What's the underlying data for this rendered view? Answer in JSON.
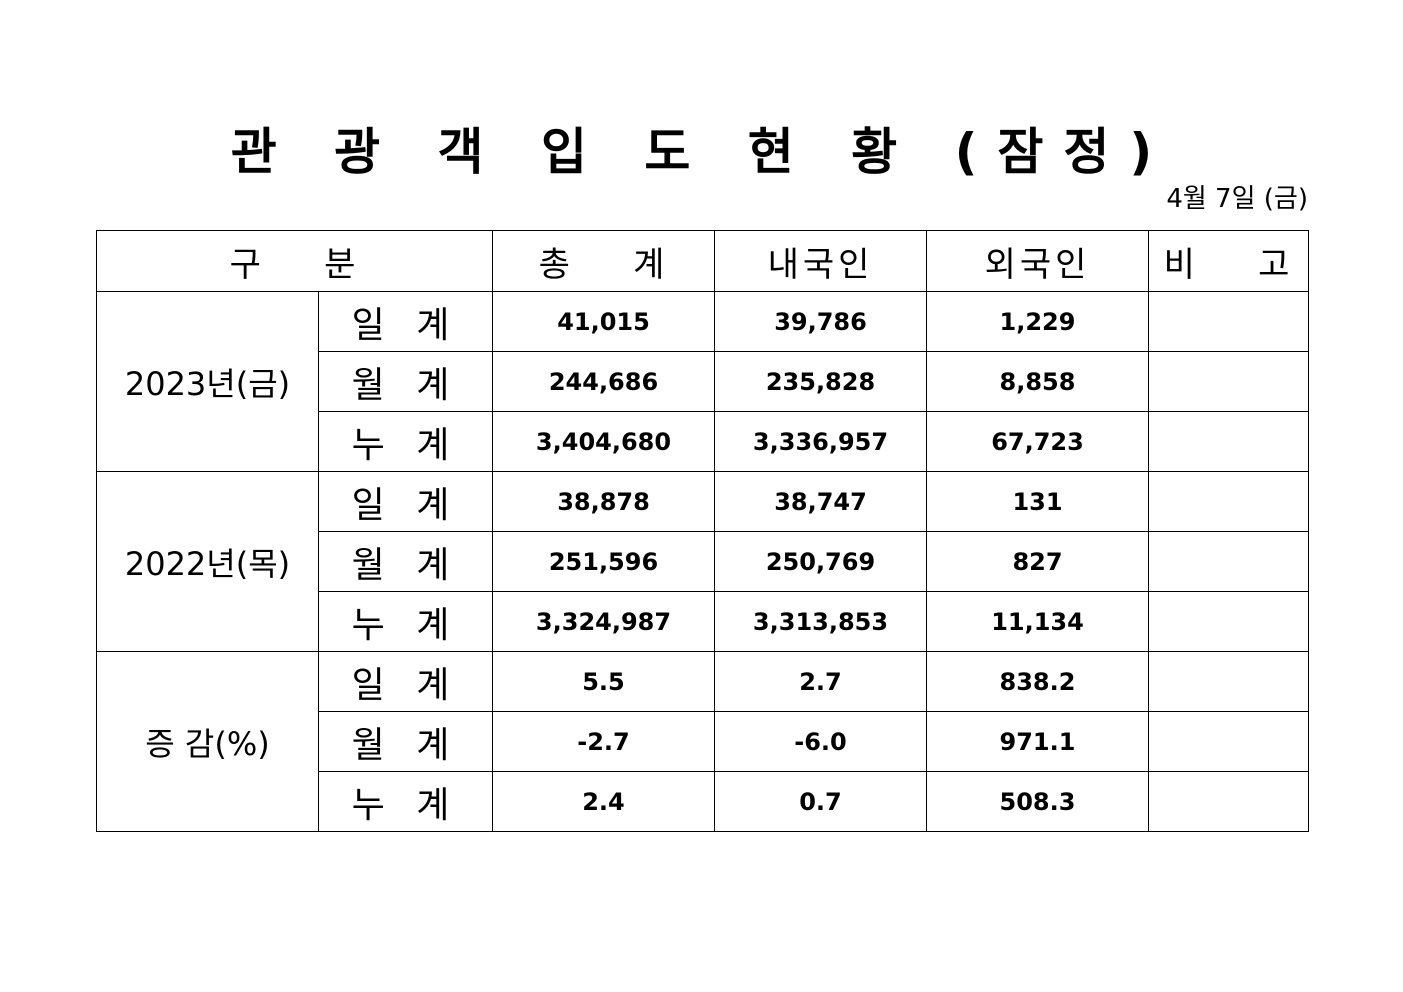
{
  "title": "관 광 객 입 도 현 황 (잠정)",
  "date": "4월 7일 (금)",
  "headers": [
    "구    분",
    "총    계",
    "내국인",
    "외국인",
    "비    고"
  ],
  "groups": [
    {
      "label": "2023년(금)",
      "rows": [
        {
          "sub": "일 계",
          "total": "41,015",
          "domestic": "39,786",
          "foreign": "1,229",
          "note": ""
        },
        {
          "sub": "월 계",
          "total": "244,686",
          "domestic": "235,828",
          "foreign": "8,858",
          "note": ""
        },
        {
          "sub": "누 계",
          "total": "3,404,680",
          "domestic": "3,336,957",
          "foreign": "67,723",
          "note": ""
        }
      ]
    },
    {
      "label": "2022년(목)",
      "rows": [
        {
          "sub": "일 계",
          "total": "38,878",
          "domestic": "38,747",
          "foreign": "131",
          "note": ""
        },
        {
          "sub": "월 계",
          "total": "251,596",
          "domestic": "250,769",
          "foreign": "827",
          "note": ""
        },
        {
          "sub": "누 계",
          "total": "3,324,987",
          "domestic": "3,313,853",
          "foreign": "11,134",
          "note": ""
        }
      ]
    },
    {
      "label": "증 감(%)",
      "rows": [
        {
          "sub": "일 계",
          "total": "5.5",
          "domestic": "2.7",
          "foreign": "838.2",
          "note": ""
        },
        {
          "sub": "월 계",
          "total": "-2.7",
          "domestic": "-6.0",
          "foreign": "971.1",
          "note": ""
        },
        {
          "sub": "누 계",
          "total": "2.4",
          "domestic": "0.7",
          "foreign": "508.3",
          "note": ""
        }
      ]
    }
  ]
}
